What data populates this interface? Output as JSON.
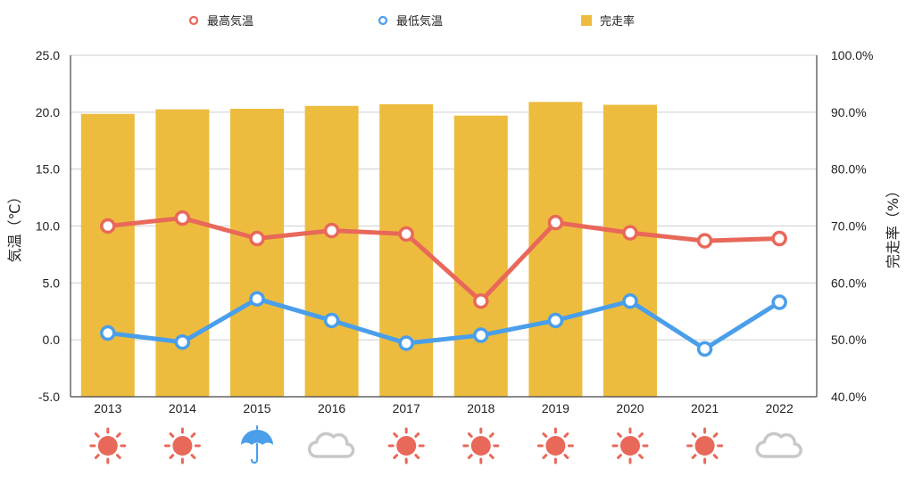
{
  "chart_data": {
    "type": "bar",
    "categories": [
      "2013",
      "2014",
      "2015",
      "2016",
      "2017",
      "2018",
      "2019",
      "2020",
      "2021",
      "2022"
    ],
    "series": [
      {
        "name": "最高気温",
        "kind": "line",
        "axis": "left",
        "color": "#E8685A",
        "values": [
          10.0,
          10.7,
          8.9,
          9.6,
          9.3,
          3.4,
          10.3,
          9.4,
          8.7,
          8.9
        ]
      },
      {
        "name": "最低気温",
        "kind": "line",
        "axis": "left",
        "color": "#4A9EEA",
        "values": [
          0.6,
          -0.2,
          3.6,
          1.7,
          -0.3,
          0.4,
          1.7,
          3.4,
          -0.8,
          3.3
        ]
      },
      {
        "name": "完走率",
        "kind": "bar",
        "axis": "right",
        "color": "#EDBC3E",
        "values": [
          89.7,
          90.5,
          90.6,
          91.1,
          91.4,
          89.4,
          91.8,
          91.3,
          null,
          null
        ]
      }
    ],
    "ylabel": "気温（℃）",
    "ylabel_right": "完走率（%）",
    "ylim": [
      -5,
      25
    ],
    "ylim_right": [
      40,
      100
    ],
    "yticks": [
      "25.0",
      "20.0",
      "15.0",
      "10.0",
      "5.0",
      "0.0",
      "-5.0"
    ],
    "yticks_right": [
      "100.0%",
      "90.0%",
      "80.0%",
      "70.0%",
      "60.0%",
      "50.0%",
      "40.0%"
    ],
    "grid": true,
    "legend_position": "top-center",
    "weather_icons": [
      "sun-icon",
      "sun-icon",
      "umbrella-icon",
      "cloud-icon",
      "sun-icon",
      "sun-icon",
      "sun-icon",
      "sun-icon",
      "sun-icon",
      "cloud-icon"
    ],
    "weather_colors": {
      "sun": "#E8685A",
      "rain": "#4A9EEA",
      "cloud": "#C8C8C8"
    }
  }
}
